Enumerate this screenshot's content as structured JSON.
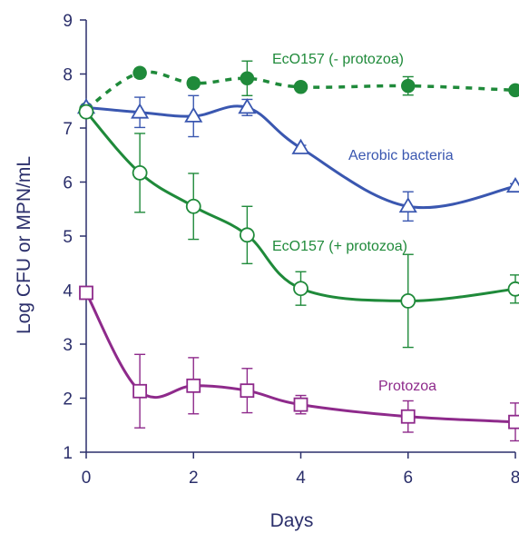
{
  "chart_data": {
    "type": "line",
    "title": "",
    "xlabel": "Days",
    "ylabel": "Log CFU or MPN/mL",
    "xlim": [
      0,
      8
    ],
    "ylim": [
      1,
      9
    ],
    "xticks": [
      "0",
      "2",
      "4",
      "6",
      "8"
    ],
    "yticks": [
      "1",
      "2",
      "3",
      "4",
      "5",
      "6",
      "7",
      "8",
      "9"
    ],
    "grid": false,
    "legend": "inline labels",
    "series": [
      {
        "name": "EcO157 (- protozoa)",
        "color": "#1f8a3a",
        "line": "dashed",
        "marker": "filled-circle",
        "x": [
          0,
          1,
          2,
          3,
          4,
          6,
          8
        ],
        "y": [
          7.35,
          8.02,
          7.83,
          7.92,
          7.76,
          7.78,
          7.7
        ],
        "err": [
          0.05,
          0.08,
          0.08,
          0.32,
          0.06,
          0.17,
          0.06
        ]
      },
      {
        "name": "Aerobic bacteria",
        "color": "#3a57b0",
        "line": "solid",
        "marker": "open-triangle",
        "x": [
          0,
          1,
          2,
          3,
          4,
          6,
          8
        ],
        "y": [
          7.38,
          7.29,
          7.22,
          7.38,
          6.63,
          5.55,
          5.92
        ],
        "err": [
          0.05,
          0.28,
          0.38,
          0.15,
          0.05,
          0.27,
          0.05
        ]
      },
      {
        "name": "EcO157 (+ protozoa)",
        "color": "#1f8a3a",
        "line": "solid",
        "marker": "open-circle",
        "x": [
          0,
          1,
          2,
          3,
          4,
          6,
          8
        ],
        "y": [
          7.3,
          6.17,
          5.55,
          5.02,
          4.03,
          3.8,
          4.02
        ],
        "err": [
          0.05,
          0.73,
          0.61,
          0.53,
          0.31,
          0.86,
          0.26
        ]
      },
      {
        "name": "Protozoa",
        "color": "#8e2a8b",
        "line": "solid",
        "marker": "open-square",
        "x": [
          0,
          1,
          2,
          3,
          4,
          6,
          8
        ],
        "y": [
          3.95,
          2.13,
          2.23,
          2.14,
          1.88,
          1.66,
          1.56
        ],
        "err": [
          0.05,
          0.68,
          0.52,
          0.41,
          0.17,
          0.29,
          0.35
        ]
      }
    ],
    "text_color": "#2b2f6b"
  }
}
